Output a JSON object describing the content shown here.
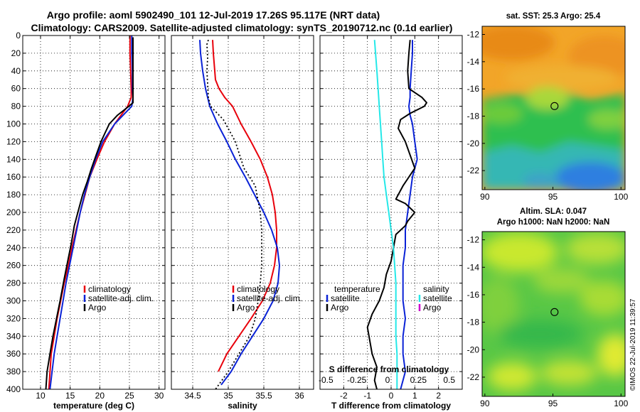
{
  "header": {
    "line1": "Argo profile: aoml 5902490_101 12-Jul-2019 17.26S 95.117E (NRT data)",
    "line2": "Climatology: CARS2009. Satellite-adjusted climatology: synTS_20190712.nc (0.1d earlier)"
  },
  "credit": "©IMOS 22-Jul-2019 11:39:57",
  "colors": {
    "climatology": "#e8000b",
    "satellite": "#0a22d6",
    "argo": "#000000",
    "sat_salinity": "#25e8e8",
    "argo_salinity": "#cc00cc"
  },
  "chart_data": [
    {
      "type": "line",
      "id": "temperature",
      "xlabel": "temperature (deg C)",
      "ylabel": "depth",
      "xlim": [
        7,
        31
      ],
      "ylim": [
        400,
        0
      ],
      "xticks": [
        10,
        15,
        20,
        25,
        30
      ],
      "yticks": [
        0,
        20,
        40,
        60,
        80,
        100,
        120,
        140,
        160,
        180,
        200,
        220,
        240,
        260,
        280,
        300,
        320,
        340,
        360,
        380,
        400
      ],
      "grid": true,
      "legend": [
        "climatology",
        "satellite-adj. clim.",
        "Argo"
      ],
      "series": [
        {
          "name": "climatology",
          "color": "#e8000b",
          "dashed": false,
          "x": [
            25.1,
            25.1,
            25.2,
            25.3,
            25.3,
            24.7,
            22.5,
            20.8,
            19.5,
            18.3,
            17.5,
            16.7,
            16.0,
            15.3,
            14.7,
            14.0,
            13.4,
            12.8,
            12.3,
            11.8,
            11.4
          ],
          "y": [
            0,
            20,
            40,
            60,
            70,
            80,
            100,
            120,
            140,
            160,
            180,
            200,
            220,
            240,
            260,
            280,
            300,
            320,
            340,
            360,
            400
          ]
        },
        {
          "name": "satellite-adj. clim.",
          "color": "#0a22d6",
          "dashed": false,
          "x": [
            25.4,
            25.4,
            25.5,
            25.5,
            25.6,
            25.4,
            22.5,
            20.5,
            19.3,
            18.3,
            17.4,
            16.7,
            16.1,
            15.5,
            14.9,
            14.3,
            13.8,
            13.3,
            12.8,
            12.3,
            11.6
          ],
          "y": [
            0,
            20,
            40,
            60,
            70,
            80,
            100,
            120,
            140,
            160,
            180,
            200,
            220,
            240,
            260,
            280,
            300,
            320,
            340,
            360,
            400
          ]
        },
        {
          "name": "Argo",
          "color": "#000000",
          "dashed": false,
          "x": [
            25.6,
            25.6,
            25.6,
            25.6,
            25.6,
            25.6,
            24.9,
            23.0,
            21.6,
            20.9,
            20.2,
            19.4,
            18.6,
            17.9,
            17.1,
            16.3,
            15.7,
            15.2,
            14.6,
            14.0,
            13.3,
            12.7,
            12.1,
            11.6,
            11.1,
            10.9
          ],
          "y": [
            2,
            20,
            40,
            60,
            70,
            76,
            80,
            90,
            100,
            110,
            120,
            135,
            150,
            165,
            180,
            200,
            215,
            235,
            255,
            275,
            300,
            320,
            340,
            360,
            380,
            400
          ]
        }
      ]
    },
    {
      "type": "line",
      "id": "salinity",
      "xlabel": "salinity",
      "ylabel": "depth",
      "xlim": [
        34.2,
        36.2
      ],
      "ylim": [
        400,
        0
      ],
      "xticks": [
        34.5,
        35,
        35.5,
        36
      ],
      "xticklabels": [
        "34.5",
        "35",
        "35.5",
        "36"
      ],
      "yticks": [
        0,
        20,
        40,
        60,
        80,
        100,
        120,
        140,
        160,
        180,
        200,
        220,
        240,
        260,
        280,
        300,
        320,
        340,
        360,
        380,
        400
      ],
      "grid": true,
      "legend": [
        "climatology",
        "satellite-adj. clim.",
        "Argo"
      ],
      "series": [
        {
          "name": "climatology",
          "color": "#e8000b",
          "dashed": false,
          "x": [
            34.78,
            34.79,
            34.81,
            34.82,
            34.87,
            34.95,
            35.06,
            35.18,
            35.32,
            35.45,
            35.55,
            35.62,
            35.66,
            35.68,
            35.68,
            35.65,
            35.59,
            35.48,
            35.32,
            35.15,
            34.98,
            34.86
          ],
          "y": [
            5,
            20,
            40,
            50,
            60,
            70,
            80,
            100,
            120,
            140,
            160,
            180,
            200,
            220,
            240,
            260,
            280,
            300,
            320,
            340,
            360,
            380
          ]
        },
        {
          "name": "satellite-adj. clim.",
          "color": "#0a22d6",
          "dashed": false,
          "x": [
            34.6,
            34.61,
            34.64,
            34.68,
            34.74,
            34.85,
            34.98,
            35.1,
            35.24,
            35.37,
            35.5,
            35.61,
            35.69,
            35.72,
            35.7,
            35.63,
            35.5,
            35.34,
            35.18,
            35.04,
            34.9
          ],
          "y": [
            5,
            20,
            40,
            60,
            80,
            100,
            120,
            140,
            160,
            180,
            200,
            220,
            240,
            260,
            280,
            300,
            320,
            340,
            360,
            380,
            395
          ]
        },
        {
          "name": "Argo",
          "color": "#000000",
          "dashed": true,
          "x": [
            34.72,
            34.7,
            34.71,
            34.7,
            34.71,
            34.72,
            34.75,
            34.93,
            35.1,
            35.22,
            35.38,
            35.45,
            35.47,
            35.47,
            35.47,
            35.45,
            35.42,
            35.38,
            35.3,
            35.15,
            35.0,
            34.82
          ],
          "y": [
            5,
            10,
            25,
            40,
            55,
            70,
            80,
            95,
            120,
            150,
            170,
            200,
            220,
            240,
            260,
            280,
            300,
            320,
            340,
            360,
            380,
            400
          ]
        }
      ]
    },
    {
      "type": "line",
      "id": "differences",
      "xlabel": "T difference from climatology",
      "x2label": "S difference from climatology",
      "ylabel": "depth",
      "xlim": [
        -3,
        3
      ],
      "ylim": [
        400,
        0
      ],
      "xticks": [
        -2,
        -1,
        0,
        1,
        2
      ],
      "x2ticklabels": [
        "-0.5",
        "-0.25",
        "0",
        "0.25",
        "0.5"
      ],
      "yticks": [
        0,
        20,
        40,
        60,
        80,
        100,
        120,
        140,
        160,
        180,
        200,
        220,
        240,
        260,
        280,
        300,
        320,
        340,
        360,
        380,
        400
      ],
      "grid": true,
      "legend": [
        "temperature",
        "satellite",
        "Argo",
        "salinity",
        "satellite",
        "Argo"
      ],
      "series": [
        {
          "name": "temperature satellite",
          "color": "#0a22d6",
          "dashed": false,
          "x": [
            0.9,
            0.9,
            0.85,
            0.8,
            0.8,
            0.75,
            0.8,
            0.9,
            1.0,
            1.1,
            0.9,
            0.8,
            0.7,
            0.6,
            0.6,
            0.5,
            0.5,
            0.5,
            0.6,
            0.5,
            0.5,
            0.6,
            0.5,
            0.4
          ],
          "y": [
            5,
            20,
            40,
            60,
            70,
            80,
            90,
            100,
            120,
            140,
            160,
            180,
            200,
            220,
            240,
            260,
            280,
            300,
            320,
            340,
            360,
            380,
            390,
            400
          ]
        },
        {
          "name": "temperature Argo",
          "color": "#000000",
          "dashed": false,
          "x": [
            0.8,
            0.75,
            0.7,
            0.75,
            1.3,
            1.5,
            1.4,
            0.8,
            0.4,
            0.3,
            0.6,
            1.0,
            0.5,
            0.2,
            0.6,
            1.0,
            0.7,
            0.6,
            0.2,
            0.1,
            0.0,
            -0.2,
            -0.3,
            -0.5,
            -0.8,
            -1.0,
            -0.9,
            -0.8,
            -0.6,
            -0.7,
            -0.6
          ],
          "y": [
            5,
            20,
            40,
            60,
            70,
            76,
            80,
            88,
            95,
            105,
            120,
            150,
            170,
            185,
            190,
            200,
            210,
            215,
            225,
            240,
            255,
            270,
            285,
            300,
            315,
            330,
            345,
            360,
            375,
            390,
            400
          ]
        },
        {
          "name": "salinity satellite",
          "color": "#25e8e8",
          "dashed": false,
          "x": [
            -0.7,
            -0.6,
            -0.55,
            -0.5,
            -0.45,
            -0.4,
            -0.35,
            -0.3,
            -0.2,
            -0.1,
            0.0,
            0.1,
            0.15,
            0.2,
            0.2,
            0.2,
            0.2,
            0.25,
            0.25,
            0.25,
            0.25
          ],
          "y": [
            5,
            40,
            60,
            80,
            100,
            120,
            140,
            160,
            180,
            200,
            220,
            240,
            260,
            280,
            300,
            320,
            340,
            360,
            380,
            395,
            400
          ]
        },
        {
          "name": "salinity Argo",
          "color": "#cc00cc",
          "dashed": false,
          "x": [],
          "y": []
        }
      ]
    },
    {
      "type": "heatmap",
      "id": "sst-map",
      "title": "sat. SST: 25.3 Argo: 25.4",
      "xlim": [
        89.8,
        100.3
      ],
      "ylim": [
        -23.4,
        -11.4
      ],
      "xticks": [
        90,
        95,
        100
      ],
      "yticks": [
        -12,
        -14,
        -16,
        -18,
        -20,
        -22
      ],
      "marker": {
        "lon": 95.117,
        "lat": -17.26
      }
    },
    {
      "type": "heatmap",
      "id": "sla-map",
      "title": "Altim. SLA: 0.047",
      "subtitle": "Argo h1000: NaN h2000: NaN",
      "xlim": [
        89.8,
        100.3
      ],
      "ylim": [
        -23.4,
        -11.4
      ],
      "xticks": [
        90,
        95,
        100
      ],
      "yticks": [
        -12,
        -14,
        -16,
        -18,
        -20,
        -22
      ],
      "marker": {
        "lon": 95.117,
        "lat": -17.26
      }
    }
  ]
}
